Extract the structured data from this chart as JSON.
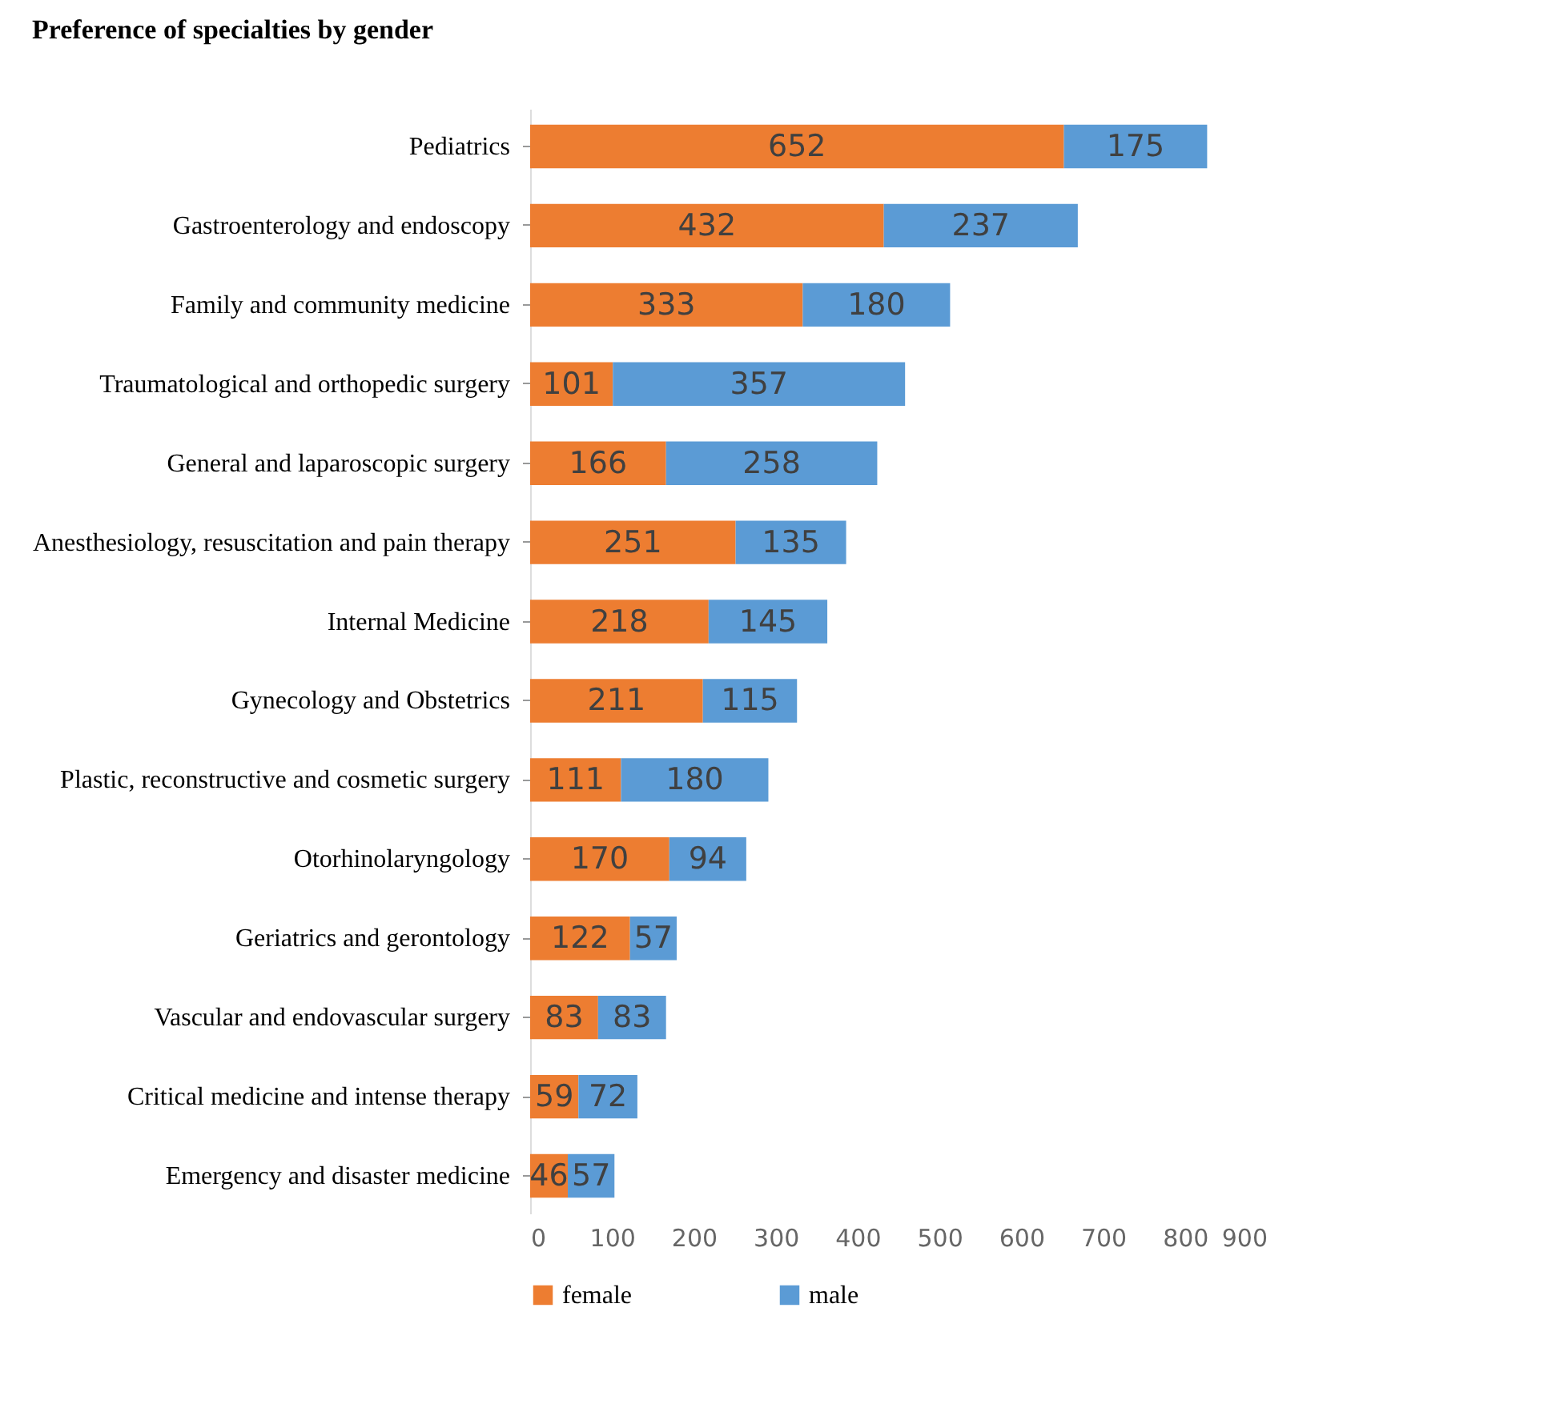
{
  "chart_data": {
    "type": "bar",
    "orientation": "horizontal",
    "stacked": true,
    "title": "Preference of specialties by gender",
    "categories": [
      "Pediatrics",
      "Gastroenterology and endoscopy",
      "Family and community medicine",
      "Traumatological and orthopedic surgery",
      "General and laparoscopic surgery",
      "Anesthesiology, resuscitation and pain therapy",
      "Internal Medicine",
      "Gynecology and Obstetrics",
      "Plastic, reconstructive and cosmetic surgery",
      "Otorhinolaryngology",
      "Geriatrics and gerontology",
      "Vascular and endovascular surgery",
      "Critical medicine and intense therapy",
      "Emergency and disaster medicine"
    ],
    "series": [
      {
        "name": "female",
        "color": "#ed7d31",
        "values": [
          652,
          432,
          333,
          101,
          166,
          251,
          218,
          211,
          111,
          170,
          122,
          83,
          59,
          46
        ]
      },
      {
        "name": "male",
        "color": "#5b9bd5",
        "values": [
          175,
          237,
          180,
          357,
          258,
          135,
          145,
          115,
          180,
          94,
          57,
          83,
          72,
          57
        ]
      }
    ],
    "xlim": [
      0,
      900
    ],
    "xticks": [
      0,
      100,
      200,
      300,
      400,
      500,
      600,
      700,
      800,
      900
    ],
    "data_labels": true,
    "grid": false,
    "legend": "bottom"
  }
}
